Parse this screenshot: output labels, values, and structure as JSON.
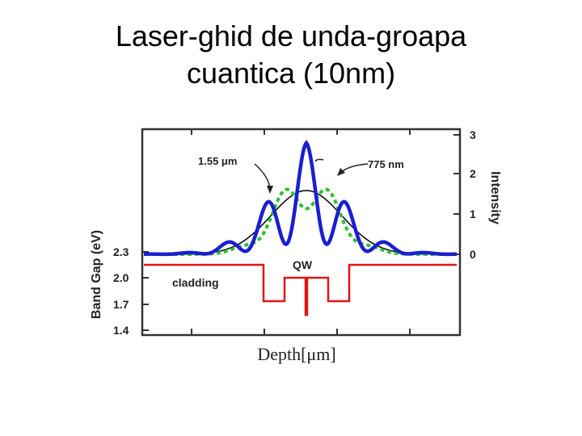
{
  "title": {
    "line1": "Laser-ghid de unda-groapa",
    "line2": "cuantica (10nm)"
  },
  "figure": {
    "left_axis_label": "Band Gap (eV)",
    "right_axis_label": "Intensity",
    "x_axis_label": "Depth[μm]",
    "left_ticks": [
      "2.3",
      "2.0",
      "1.7",
      "1.4"
    ],
    "right_ticks": [
      "3",
      "2",
      "1",
      "0"
    ],
    "annotations": {
      "mode_1550": "1.55 μm",
      "mode_775": "775 nm",
      "qw": "QW",
      "cladding": "cladding"
    },
    "colors": {
      "mode_1550": "#1a1fcf",
      "mode_775": "#2fc02f",
      "envelope": "#000000",
      "band_gap": "#e41414",
      "frame": "#333333"
    }
  }
}
